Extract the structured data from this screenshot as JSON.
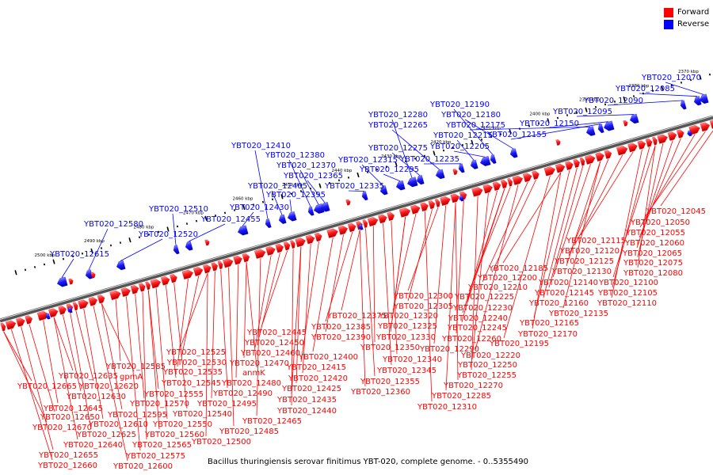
{
  "legend": {
    "forward_label": "Forward",
    "reverse_label": "Reverse",
    "forward_color": "#ff0000",
    "reverse_color": "#0000ff"
  },
  "caption": "Bacillus thuringiensis serovar finitimus YBT-020, complete genome. - 0..5355490",
  "scale_ticks": [
    "2370 kbp",
    "2380 kbp",
    "2390 kbp",
    "2400 kbp",
    "2410 kbp",
    "2420 kbp",
    "2430 kbp",
    "2440 kbp",
    "2450 kbp",
    "2460 kbp",
    "2470 kbp",
    "2480 kbp",
    "2490 kbp",
    "2500 kbp"
  ],
  "reverse_genes": [
    "YBT020_12070",
    "YBT020_12085",
    "YBT020_12090",
    "YBT020_12095",
    "YBT020_12150",
    "YBT020_12155",
    "YBT020_12175",
    "YBT020_12180",
    "YBT020_12190",
    "YBT020_12205",
    "YBT020_12215",
    "YBT020_12235",
    "YBT020_12265",
    "YBT020_12275",
    "YBT020_12280",
    "YBT020_12295",
    "YBT020_12315",
    "YBT020_12335",
    "YBT020_12365",
    "YBT020_12370",
    "YBT020_12380",
    "YBT020_12395",
    "YBT020_12405",
    "YBT020_12410",
    "YBT020_12430",
    "YBT020_12455",
    "YBT020_12510",
    "YBT020_12520",
    "YBT020_12580",
    "YBT020_12615"
  ],
  "forward_genes": [
    "YBT020_12045",
    "YBT020_12050",
    "YBT020_12055",
    "YBT020_12060",
    "YBT020_12065",
    "YBT020_12075",
    "YBT020_12080",
    "YBT020_12100",
    "YBT020_12105",
    "YBT020_12110",
    "YBT020_12115",
    "YBT020_12120",
    "YBT020_12125",
    "YBT020_12130",
    "YBT020_12135",
    "YBT020_12140",
    "YBT020_12145",
    "YBT020_12160",
    "YBT020_12165",
    "YBT020_12170",
    "YBT020_12185",
    "YBT020_12195",
    "YBT020_12200",
    "YBT020_12210",
    "YBT020_12220",
    "YBT020_12225",
    "YBT020_12230",
    "YBT020_12240",
    "YBT020_12245",
    "YBT020_12250",
    "YBT020_12255",
    "YBT020_12260",
    "YBT020_12270",
    "YBT020_12285",
    "YBT020_12290",
    "YBT020_12300",
    "YBT020_12305",
    "YBT020_12310",
    "YBT020_12320",
    "YBT020_12325",
    "YBT020_12330",
    "YBT020_12340",
    "YBT020_12345",
    "YBT020_12350",
    "YBT020_12355",
    "YBT020_12360",
    "YBT020_12375",
    "YBT020_12385",
    "YBT020_12390",
    "YBT020_12400",
    "YBT020_12415",
    "YBT020_12420",
    "YBT020_12425",
    "YBT020_12435",
    "YBT020_12440",
    "YBT020_12445",
    "YBT020_12450",
    "YBT020_12460",
    "YBT020_12465",
    "YBT020_12470",
    "anmK",
    "YBT020_12480",
    "YBT020_12485",
    "YBT020_12490",
    "YBT020_12495",
    "YBT020_12500",
    "YBT020_12525",
    "YBT020_12530",
    "YBT020_12535",
    "YBT020_12540",
    "YBT020_12545",
    "YBT020_12550",
    "YBT020_12555",
    "YBT020_12560",
    "YBT020_12565",
    "YBT020_12570",
    "YBT020_12575",
    "YBT020_12585",
    "gpmA",
    "YBT020_12595",
    "YBT020_12600",
    "YBT020_12610",
    "YBT020_12620",
    "YBT020_12625",
    "YBT020_12630",
    "YBT020_12635",
    "YBT020_12640",
    "YBT020_12645",
    "YBT020_12650",
    "YBT020_12655",
    "YBT020_12660",
    "YBT020_12665",
    "YBT020_12670"
  ]
}
